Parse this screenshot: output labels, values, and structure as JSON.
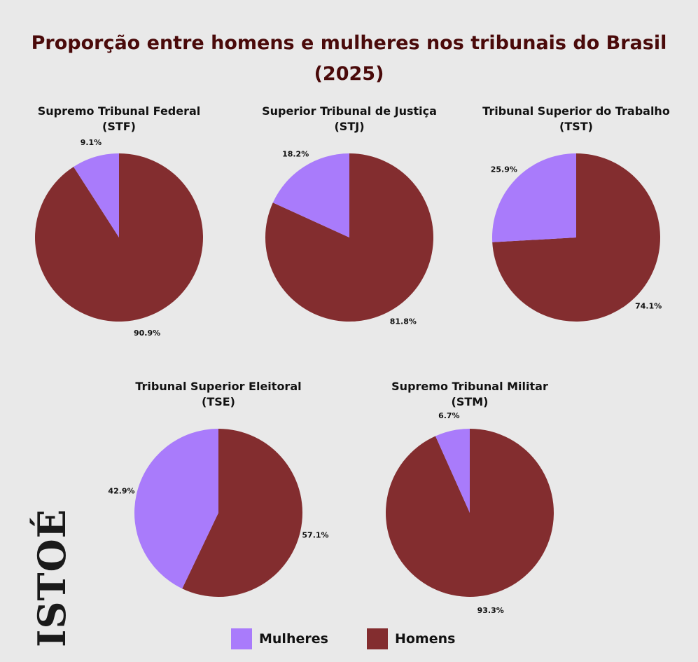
{
  "title": {
    "line1": "Proporção entre homens e mulheres nos tribunais do Brasil",
    "line2": "(2025)"
  },
  "colors": {
    "mulheres": "#a97bfb",
    "homens": "#832d2f"
  },
  "legend": [
    {
      "label": "Mulheres",
      "color": "#a97bfb"
    },
    {
      "label": "Homens",
      "color": "#832d2f"
    }
  ],
  "logo": {
    "text": "ISTOÉ"
  },
  "chart_data": [
    {
      "type": "pie",
      "title_line1": "Supremo Tribunal Federal",
      "title_line2": "(STF)",
      "slices": [
        {
          "name": "Mulheres",
          "value": 9.1,
          "label": "9.1%"
        },
        {
          "name": "Homens",
          "value": 90.9,
          "label": "90.9%"
        }
      ]
    },
    {
      "type": "pie",
      "title_line1": "Superior Tribunal de Justiça",
      "title_line2": "(STJ)",
      "slices": [
        {
          "name": "Mulheres",
          "value": 18.2,
          "label": "18.2%"
        },
        {
          "name": "Homens",
          "value": 81.8,
          "label": "81.8%"
        }
      ]
    },
    {
      "type": "pie",
      "title_line1": "Tribunal Superior do Trabalho",
      "title_line2": "(TST)",
      "slices": [
        {
          "name": "Mulheres",
          "value": 25.9,
          "label": "25.9%"
        },
        {
          "name": "Homens",
          "value": 74.1,
          "label": "74.1%"
        }
      ]
    },
    {
      "type": "pie",
      "title_line1": "Tribunal Superior Eleitoral",
      "title_line2": "(TSE)",
      "slices": [
        {
          "name": "Mulheres",
          "value": 42.9,
          "label": "42.9%"
        },
        {
          "name": "Homens",
          "value": 57.1,
          "label": "57.1%"
        }
      ]
    },
    {
      "type": "pie",
      "title_line1": "Supremo Tribunal Militar",
      "title_line2": "(STM)",
      "slices": [
        {
          "name": "Mulheres",
          "value": 6.7,
          "label": "6.7%"
        },
        {
          "name": "Homens",
          "value": 93.3,
          "label": "93.3%"
        }
      ]
    }
  ]
}
